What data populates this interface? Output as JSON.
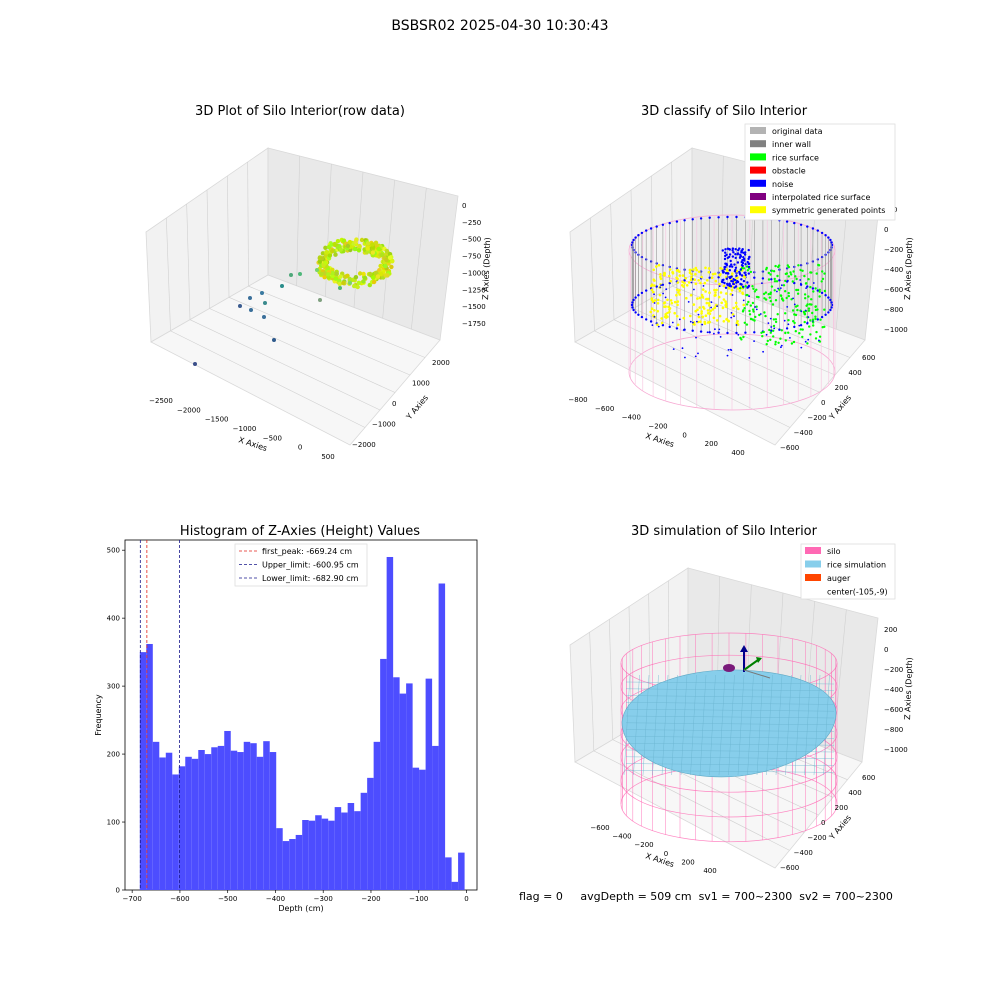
{
  "suptitle": "BSBSR02 2025-04-30 10:30:43",
  "footer": {
    "flag": "flag = 0",
    "avg": "avgDepth = 509 cm",
    "sv1": "sv1 = 700~2300",
    "sv2": "sv2 = 700~2300"
  },
  "colors": {
    "hist_bar": "#4d4dff",
    "first_peak": "#e3241b",
    "upper": "#1a1a8c",
    "lower": "#1a1a8c",
    "pane": "#f0f0f0",
    "silo": "#ff69b4",
    "rice": "#87ceeb",
    "auger": "#ff4500",
    "rice_surface": "#00ff00",
    "noise": "#0000ff",
    "symmetric": "#ffff00",
    "original": "#b3b3b3",
    "inner_wall": "#808080",
    "obstacle": "#ff0000",
    "interpolated": "#800080"
  },
  "chart_data": [
    {
      "id": "raw3d",
      "type": "scatter",
      "title": "3D Plot of Silo Interior(row data)",
      "xlabel": "X Axies",
      "ylabel": "Y Axies",
      "zlabel": "Z Axies (Depth)",
      "xticks": [
        "−2500",
        "−2000",
        "−1500",
        "−1000",
        "−500",
        "0",
        "500"
      ],
      "yticks": [
        "−2000",
        "−1000",
        "0",
        "1000",
        "2000"
      ],
      "zticks": [
        "0",
        "−250",
        "−500",
        "−750",
        "−1000",
        "−1250",
        "−1500",
        "−1750"
      ],
      "xlim": [
        -2600,
        600
      ],
      "ylim": [
        -2300,
        2300
      ],
      "zlim": [
        -1900,
        100
      ],
      "colormap": "viridis"
    },
    {
      "id": "classify3d",
      "type": "scatter",
      "title": "3D classify of Silo Interior",
      "xlabel": "X Axies",
      "ylabel": "Y Axies",
      "zlabel": "Z Axies (Depth)",
      "xticks": [
        "−800",
        "−600",
        "−400",
        "−200",
        "0",
        "200",
        "400"
      ],
      "yticks": [
        "−600",
        "−400",
        "−200",
        "0",
        "200",
        "400",
        "600"
      ],
      "zticks": [
        "200",
        "0",
        "−200",
        "−400",
        "−600",
        "−800",
        "−1000"
      ],
      "legend": [
        "original data",
        "inner wall",
        "rice surface",
        "obstacle",
        "noise",
        "interpolated rice surface",
        "symmetric generated points"
      ],
      "legend_loc": "upper-right"
    },
    {
      "id": "histogram",
      "type": "bar",
      "title": "Histogram of Z-Axies (Height) Values",
      "xlabel": "Depth (cm)",
      "ylabel": "Frequency",
      "xlim": [
        -715,
        22
      ],
      "ylim": [
        0,
        515
      ],
      "xticks": [
        -700,
        -600,
        -500,
        -400,
        -300,
        -200,
        -100,
        0
      ],
      "yticks": [
        0,
        100,
        200,
        300,
        400,
        500
      ],
      "bin_start": -684,
      "bin_width": 13.6,
      "values": [
        350,
        362,
        218,
        195,
        202,
        170,
        182,
        196,
        193,
        206,
        200,
        210,
        212,
        234,
        205,
        203,
        218,
        216,
        196,
        219,
        203,
        91,
        72,
        75,
        81,
        103,
        102,
        110,
        105,
        102,
        122,
        114,
        128,
        116,
        143,
        165,
        218,
        340,
        490,
        313,
        289,
        304,
        180,
        177,
        311,
        212,
        451,
        48,
        12,
        55
      ],
      "vlines": [
        {
          "name": "first_peak",
          "x": -669.24,
          "label": "first_peak: -669.24 cm"
        },
        {
          "name": "upper",
          "x": -600.95,
          "label": "Upper_limit: -600.95 cm"
        },
        {
          "name": "lower",
          "x": -682.9,
          "label": "Lower_limit: -682.90 cm"
        }
      ],
      "legend_loc": "upper-center"
    },
    {
      "id": "sim3d",
      "type": "scatter",
      "title": "3D simulation of Silo Interior",
      "xlabel": "X Axies",
      "ylabel": "Y Axies",
      "zlabel": "Z Axies (Depth)",
      "xticks": [
        "−600",
        "−400",
        "−200",
        "0",
        "200",
        "400"
      ],
      "yticks": [
        "−600",
        "−400",
        "−200",
        "0",
        "200",
        "400",
        "600"
      ],
      "zticks": [
        "200",
        "0",
        "−200",
        "−400",
        "−600",
        "−800",
        "−1000"
      ],
      "legend": [
        "silo",
        "rice simulation",
        "auger",
        "center(-105,-9)"
      ],
      "legend_loc": "upper-right"
    }
  ]
}
